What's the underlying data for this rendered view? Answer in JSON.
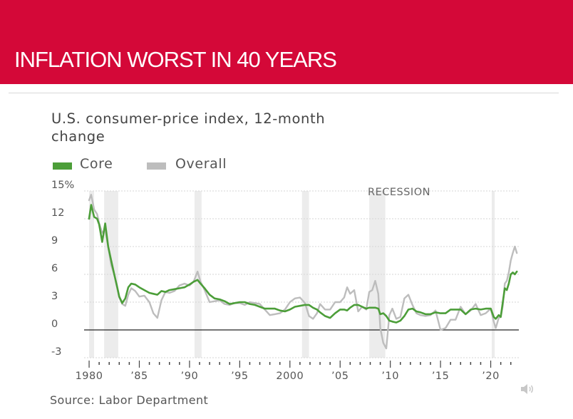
{
  "banner": {
    "title": "INFLATION WORST IN 40 YEARS",
    "color": "#d40838"
  },
  "chart_data": {
    "type": "line",
    "title": "U.S. consumer-price index, 12-month change",
    "title_lines": [
      "U.S. consumer-price index, 12-month",
      "change"
    ],
    "legend": [
      {
        "label": "Core",
        "color": "#4c9e39"
      },
      {
        "label": "Overall",
        "color": "#bdbdbd"
      }
    ],
    "annotation": "RECESSION",
    "source": "Source: Labor Department",
    "xlim": [
      1979.5,
      2022.8
    ],
    "ylim": [
      -3,
      15
    ],
    "y_ticks": [
      15,
      12,
      9,
      6,
      3,
      0,
      -3
    ],
    "y_tick_labels": [
      "15%",
      "12",
      "9",
      "6",
      "3",
      "0",
      "-3"
    ],
    "x_ticks": [
      1980,
      1985,
      1990,
      1995,
      2000,
      2005,
      2010,
      2015,
      2020
    ],
    "x_tick_labels": [
      "1980",
      "’85",
      "’90",
      "’95",
      "2000",
      "’05",
      "’10",
      "’15",
      "’20"
    ],
    "recessions": [
      [
        1980.0,
        1980.5
      ],
      [
        1981.5,
        1982.9
      ],
      [
        1990.5,
        1991.2
      ],
      [
        2001.2,
        2001.9
      ],
      [
        2007.9,
        2009.5
      ],
      [
        2020.1,
        2020.4
      ]
    ],
    "recession_color": "#ececec",
    "grid": true,
    "series": [
      {
        "name": "Overall",
        "color": "#bdbdbd",
        "x": [
          1980.0,
          1980.2,
          1980.5,
          1980.8,
          1981.0,
          1981.3,
          1981.6,
          1981.9,
          1982.2,
          1982.5,
          1982.8,
          1983.0,
          1983.3,
          1983.6,
          1983.9,
          1984.2,
          1984.6,
          1985.0,
          1985.5,
          1986.0,
          1986.4,
          1986.8,
          1987.2,
          1987.6,
          1988.0,
          1988.5,
          1989.0,
          1989.5,
          1990.0,
          1990.4,
          1990.8,
          1991.1,
          1991.5,
          1992.0,
          1992.5,
          1993.0,
          1993.5,
          1994.0,
          1994.5,
          1995.0,
          1995.5,
          1996.0,
          1996.5,
          1997.0,
          1997.5,
          1998.0,
          1998.5,
          1999.0,
          1999.5,
          2000.0,
          2000.5,
          2001.0,
          2001.5,
          2001.9,
          2002.3,
          2002.7,
          2003.0,
          2003.5,
          2004.0,
          2004.5,
          2005.0,
          2005.4,
          2005.7,
          2006.0,
          2006.4,
          2006.8,
          2007.2,
          2007.6,
          2007.9,
          2008.2,
          2008.5,
          2008.8,
          2009.0,
          2009.3,
          2009.6,
          2009.9,
          2010.2,
          2010.6,
          2011.0,
          2011.4,
          2011.8,
          2012.2,
          2012.6,
          2013.0,
          2013.5,
          2014.0,
          2014.5,
          2015.0,
          2015.5,
          2016.0,
          2016.5,
          2017.0,
          2017.5,
          2018.0,
          2018.5,
          2019.0,
          2019.5,
          2020.0,
          2020.3,
          2020.5,
          2020.8,
          2021.0,
          2021.2,
          2021.4,
          2021.6,
          2021.8,
          2022.0,
          2022.2,
          2022.4,
          2022.6
        ],
        "values": [
          14.0,
          14.6,
          13.0,
          12.5,
          11.5,
          10.5,
          10.8,
          9.0,
          7.0,
          6.0,
          4.5,
          3.5,
          2.8,
          2.6,
          3.8,
          4.5,
          4.2,
          3.6,
          3.7,
          3.0,
          1.8,
          1.3,
          3.2,
          4.1,
          4.0,
          4.2,
          4.8,
          5.0,
          4.8,
          5.2,
          6.3,
          5.2,
          4.3,
          3.0,
          3.1,
          3.2,
          2.8,
          2.7,
          2.9,
          2.9,
          2.7,
          3.0,
          2.9,
          2.8,
          2.2,
          1.6,
          1.7,
          1.8,
          2.2,
          3.0,
          3.4,
          3.5,
          2.9,
          1.5,
          1.2,
          1.8,
          2.8,
          2.2,
          2.2,
          3.0,
          3.0,
          3.5,
          4.6,
          3.9,
          4.3,
          2.0,
          2.5,
          2.2,
          4.1,
          4.3,
          5.3,
          3.9,
          0.2,
          -1.4,
          -2.0,
          1.6,
          2.3,
          1.2,
          1.4,
          3.4,
          3.8,
          2.7,
          1.8,
          1.6,
          1.5,
          1.6,
          2.1,
          0.0,
          0.2,
          1.1,
          1.1,
          2.5,
          1.7,
          2.1,
          2.8,
          1.6,
          1.8,
          2.3,
          0.9,
          0.2,
          1.3,
          1.4,
          2.6,
          5.0,
          5.3,
          6.2,
          7.5,
          8.3,
          9.0,
          8.3
        ]
      },
      {
        "name": "Core",
        "color": "#4c9e39",
        "x": [
          1980.0,
          1980.2,
          1980.5,
          1980.8,
          1981.0,
          1981.3,
          1981.6,
          1981.9,
          1982.2,
          1982.5,
          1982.8,
          1983.0,
          1983.3,
          1983.6,
          1983.9,
          1984.2,
          1984.6,
          1985.0,
          1985.5,
          1986.0,
          1986.4,
          1986.8,
          1987.2,
          1987.6,
          1988.0,
          1988.5,
          1989.0,
          1989.5,
          1990.0,
          1990.4,
          1990.8,
          1991.1,
          1991.5,
          1992.0,
          1992.5,
          1993.0,
          1993.5,
          1994.0,
          1994.5,
          1995.0,
          1995.5,
          1996.0,
          1996.5,
          1997.0,
          1997.5,
          1998.0,
          1998.5,
          1999.0,
          1999.5,
          2000.0,
          2000.5,
          2001.0,
          2001.5,
          2001.9,
          2002.3,
          2002.7,
          2003.0,
          2003.5,
          2004.0,
          2004.5,
          2005.0,
          2005.4,
          2005.7,
          2006.0,
          2006.4,
          2006.8,
          2007.2,
          2007.6,
          2007.9,
          2008.2,
          2008.5,
          2008.8,
          2009.0,
          2009.3,
          2009.6,
          2009.9,
          2010.2,
          2010.6,
          2011.0,
          2011.4,
          2011.8,
          2012.2,
          2012.6,
          2013.0,
          2013.5,
          2014.0,
          2014.5,
          2015.0,
          2015.5,
          2016.0,
          2016.5,
          2017.0,
          2017.5,
          2018.0,
          2018.5,
          2019.0,
          2019.5,
          2020.0,
          2020.3,
          2020.5,
          2020.8,
          2021.0,
          2021.2,
          2021.4,
          2021.6,
          2021.8,
          2022.0,
          2022.2,
          2022.4,
          2022.6
        ],
        "values": [
          12.0,
          13.5,
          12.2,
          12.0,
          11.4,
          9.5,
          11.5,
          9.0,
          7.5,
          6.0,
          4.6,
          3.6,
          2.9,
          3.4,
          4.6,
          5.0,
          4.9,
          4.6,
          4.3,
          4.0,
          3.9,
          3.8,
          4.2,
          4.1,
          4.3,
          4.4,
          4.5,
          4.6,
          4.9,
          5.2,
          5.4,
          5.0,
          4.5,
          3.8,
          3.4,
          3.3,
          3.1,
          2.8,
          2.9,
          3.0,
          3.0,
          2.8,
          2.7,
          2.5,
          2.3,
          2.3,
          2.3,
          2.1,
          2.0,
          2.2,
          2.5,
          2.6,
          2.7,
          2.7,
          2.4,
          2.2,
          1.9,
          1.5,
          1.3,
          1.8,
          2.2,
          2.2,
          2.1,
          2.4,
          2.7,
          2.7,
          2.5,
          2.3,
          2.4,
          2.4,
          2.4,
          2.3,
          1.7,
          1.8,
          1.5,
          1.0,
          0.9,
          0.8,
          1.0,
          1.5,
          2.2,
          2.3,
          2.0,
          1.9,
          1.7,
          1.7,
          1.9,
          1.8,
          1.8,
          2.2,
          2.2,
          2.2,
          1.7,
          2.2,
          2.3,
          2.2,
          2.3,
          2.3,
          1.4,
          1.2,
          1.6,
          1.4,
          3.0,
          4.5,
          4.3,
          5.0,
          6.0,
          6.2,
          6.0,
          6.3
        ]
      }
    ]
  }
}
